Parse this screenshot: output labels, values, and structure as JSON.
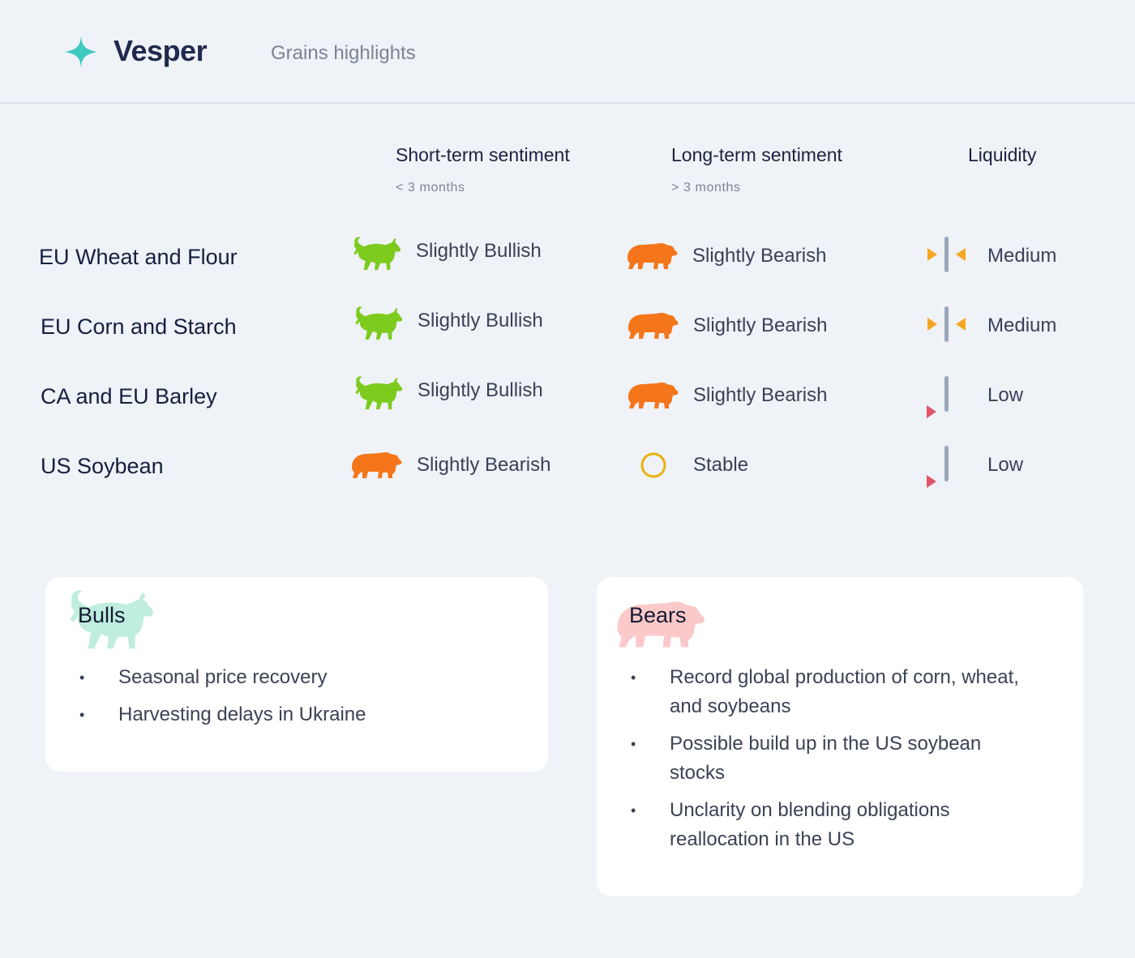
{
  "header": {
    "brand": "Vesper",
    "title": "Grains highlights"
  },
  "columns": {
    "short": {
      "title": "Short-term sentiment",
      "sub": "< 3 months"
    },
    "long": {
      "title": "Long-term sentiment",
      "sub": "> 3 months"
    },
    "liquidity": {
      "title": "Liquidity"
    }
  },
  "rows": [
    {
      "name": "EU Wheat and Flour",
      "short": {
        "icon": "bull-icon",
        "label": "Slightly Bullish"
      },
      "long": {
        "icon": "bear-icon",
        "label": "Slightly Bearish"
      },
      "liquidity": {
        "icon": "liquidity-medium-icon",
        "label": "Medium"
      }
    },
    {
      "name": "EU Corn and Starch",
      "short": {
        "icon": "bull-icon",
        "label": "Slightly Bullish"
      },
      "long": {
        "icon": "bear-icon",
        "label": "Slightly Bearish"
      },
      "liquidity": {
        "icon": "liquidity-medium-icon",
        "label": "Medium"
      }
    },
    {
      "name": "CA and EU Barley",
      "short": {
        "icon": "bull-icon",
        "label": "Slightly Bullish"
      },
      "long": {
        "icon": "bear-icon",
        "label": "Slightly Bearish"
      },
      "liquidity": {
        "icon": "liquidity-low-icon",
        "label": "Low"
      }
    },
    {
      "name": "US Soybean",
      "short": {
        "icon": "bear-icon",
        "label": "Slightly Bearish"
      },
      "long": {
        "icon": "stable-circle-icon",
        "label": "Stable"
      },
      "liquidity": {
        "icon": "liquidity-low-icon",
        "label": "Low"
      }
    }
  ],
  "bulls": {
    "title": "Bulls",
    "items": [
      "Seasonal price recovery",
      "Harvesting delays in Ukraine"
    ]
  },
  "bears": {
    "title": "Bears",
    "items": [
      "Record global production of corn, wheat, and soybeans",
      "Possible build up in the US soybean stocks",
      "Unclarity on blending obligations reallocation in the US"
    ]
  },
  "colors": {
    "bull": "#7ecb20",
    "bear": "#f5761a",
    "stable": "#e8b10c",
    "liquidity_arrow_medium": "#f5a623",
    "liquidity_arrow_low": "#e0556a",
    "liquidity_bar": "#9aa6bd",
    "brand_accent": "#3ec8c0"
  }
}
